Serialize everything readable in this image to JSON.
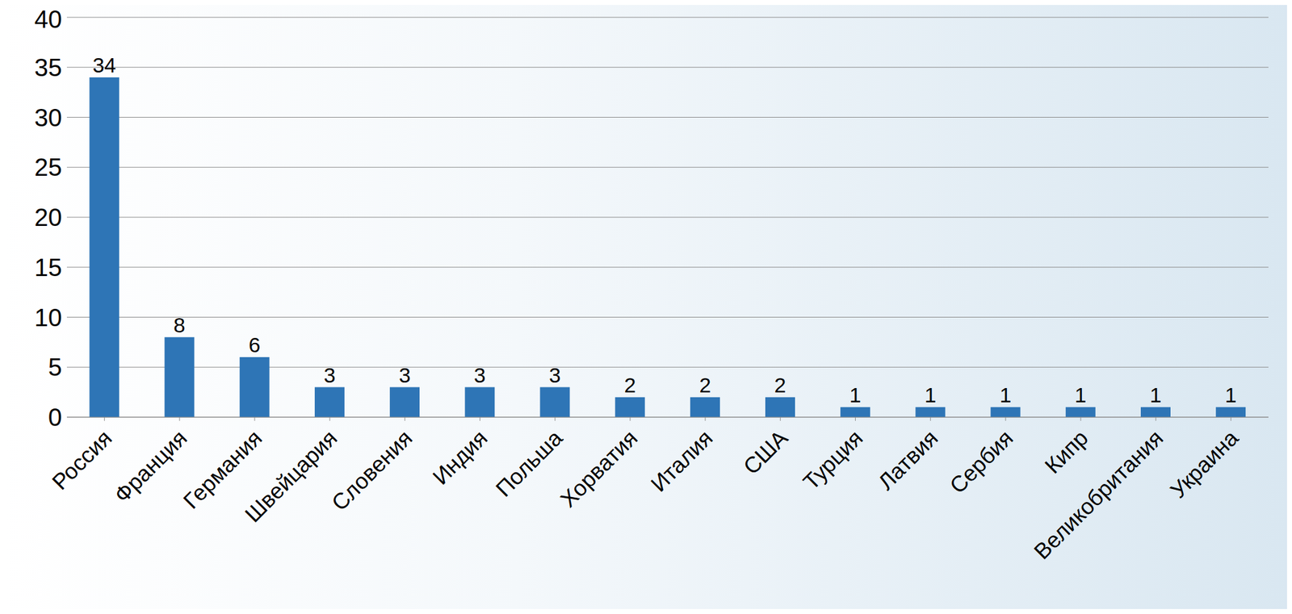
{
  "chart_data": {
    "type": "bar",
    "categories": [
      "Россия",
      "Франция",
      "Германия",
      "Швейцария",
      "Словения",
      "Индия",
      "Польша",
      "Хорватия",
      "Италия",
      "США",
      "Турция",
      "Латвия",
      "Сербия",
      "Кипр",
      "Великобритания",
      "Украина"
    ],
    "values": [
      34,
      8,
      6,
      3,
      3,
      3,
      3,
      2,
      2,
      2,
      1,
      1,
      1,
      1,
      1,
      1
    ],
    "color": "#2e75b6",
    "ylim": [
      0,
      40
    ],
    "yticks": [
      0,
      5,
      10,
      15,
      20,
      25,
      30,
      35,
      40
    ],
    "grid": true,
    "data_labels": true
  }
}
